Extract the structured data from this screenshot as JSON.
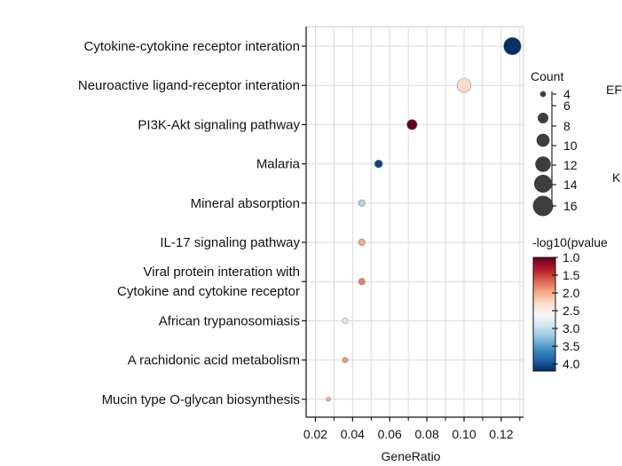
{
  "chart_data": {
    "type": "scatter",
    "xlabel": "GeneRatio",
    "ylabel": "",
    "xlim": [
      0.015,
      0.132
    ],
    "xticks": [
      0.02,
      0.04,
      0.06,
      0.08,
      0.1,
      0.12
    ],
    "xtick_labels": [
      "0.02",
      "0.04",
      "0.06",
      "0.08",
      "0.10",
      "0.12"
    ],
    "grid": true,
    "categories": [
      [
        "Cytokine-cytokine receptor interation"
      ],
      [
        "Neuroactive ligand-receptor interation"
      ],
      [
        "PI3K-Akt signaling pathway"
      ],
      [
        "Malaria"
      ],
      [
        "Mineral absorption"
      ],
      [
        "IL-17 signaling pathway"
      ],
      [
        "Viral protein interation with",
        "Cytokine and cytokine receptor"
      ],
      [
        "African trypanosomiasis"
      ],
      [
        "A rachidonic acid metabolism"
      ],
      [
        "Mucin type O-glycan biosynthesis"
      ]
    ],
    "points": [
      {
        "gene_ratio": 0.126,
        "count": 14,
        "neg_log10_pvalue": 4.2
      },
      {
        "gene_ratio": 0.1,
        "count": 11,
        "neg_log10_pvalue": 2.3
      },
      {
        "gene_ratio": 0.072,
        "count": 8,
        "neg_log10_pvalue": 1.0
      },
      {
        "gene_ratio": 0.054,
        "count": 6,
        "neg_log10_pvalue": 4.1
      },
      {
        "gene_ratio": 0.045,
        "count": 5,
        "neg_log10_pvalue": 3.1
      },
      {
        "gene_ratio": 0.045,
        "count": 5,
        "neg_log10_pvalue": 2.0
      },
      {
        "gene_ratio": 0.045,
        "count": 5,
        "neg_log10_pvalue": 1.8
      },
      {
        "gene_ratio": 0.036,
        "count": 4,
        "neg_log10_pvalue": 2.8
      },
      {
        "gene_ratio": 0.036,
        "count": 4,
        "neg_log10_pvalue": 1.9
      },
      {
        "gene_ratio": 0.027,
        "count": 3,
        "neg_log10_pvalue": 2.0
      }
    ],
    "size_legend": {
      "title": "Count",
      "values": [
        4,
        6,
        8,
        10,
        12,
        14,
        16
      ],
      "labels": [
        "4",
        "6",
        "8",
        "10",
        "12",
        "14",
        "16"
      ]
    },
    "color_legend": {
      "title": "-log10(pvalue",
      "range": [
        1.0,
        4.2
      ],
      "ticks": [
        1.0,
        1.5,
        2.0,
        2.5,
        3.0,
        3.5,
        4.0
      ],
      "tick_labels": [
        "1.0",
        "1.5",
        "2.0",
        "2.5",
        "3.0",
        "3.5",
        "4.0"
      ],
      "colors": [
        "#67001f",
        "#b2182b",
        "#d6604d",
        "#f4a582",
        "#fddbc7",
        "#f7f7f7",
        "#d1e5f0",
        "#92c5de",
        "#4393c3",
        "#2166ac",
        "#053061"
      ]
    },
    "clipped_labels": [
      "EF",
      "K"
    ]
  }
}
